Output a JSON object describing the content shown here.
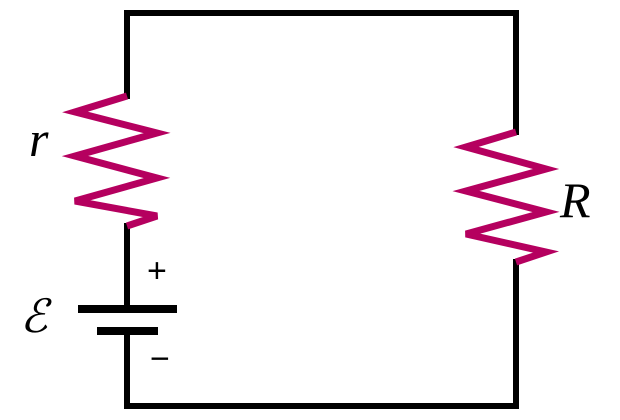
{
  "colors": {
    "wire": "#000000",
    "resistor": "#b5005f",
    "background": "#ffffff"
  },
  "components": {
    "internal_resistor": {
      "label": "r"
    },
    "load_resistor": {
      "label": "R"
    },
    "battery": {
      "emf_label": "ℰ",
      "positive_sign": "+",
      "negative_sign": "−"
    }
  }
}
